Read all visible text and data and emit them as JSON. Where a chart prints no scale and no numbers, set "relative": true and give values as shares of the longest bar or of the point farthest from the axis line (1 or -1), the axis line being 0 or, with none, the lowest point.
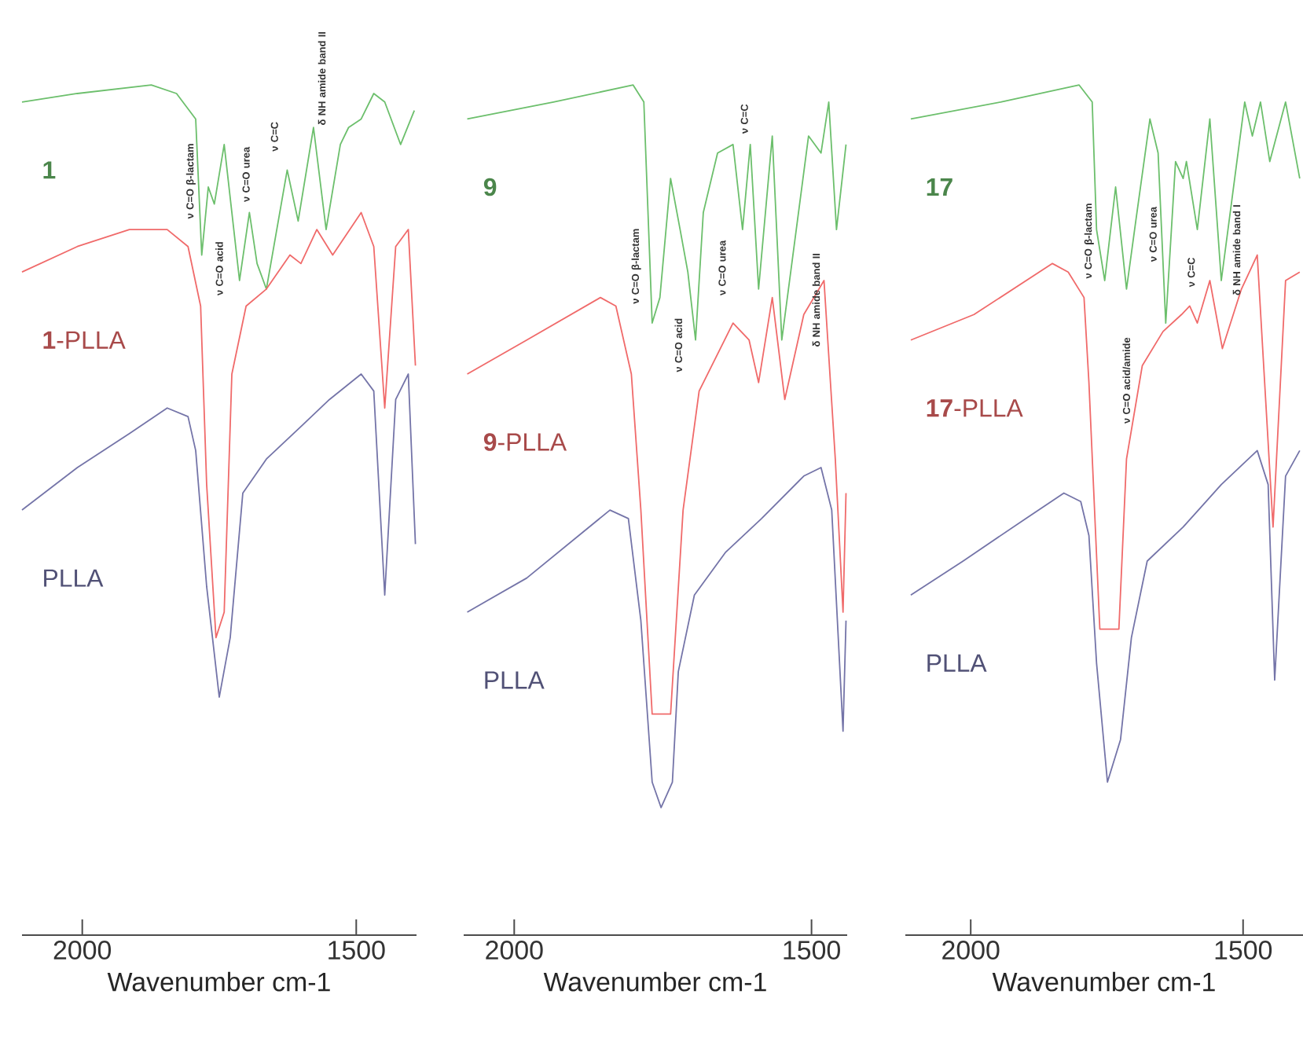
{
  "chart_data": [
    {
      "type": "line",
      "relative": true,
      "xlim": [
        2110,
        1390
      ],
      "xticks": [
        2000,
        1500
      ],
      "xlabel": "Wavenumber cm-1",
      "tick_labels": "x",
      "grid": false,
      "marker": "none",
      "series": [
        {
          "name": "1",
          "color": "#6cbf6c",
          "x": [
            2110,
            2009,
            1874,
            1828,
            1793,
            1782,
            1770,
            1759,
            1741,
            1727,
            1713,
            1695,
            1681,
            1664,
            1626,
            1606,
            1578,
            1555,
            1529,
            1514,
            1491,
            1468,
            1448,
            1419,
            1394
          ],
          "values": [
            0.98,
            0.99,
            1.0,
            0.99,
            0.96,
            0.8,
            0.88,
            0.86,
            0.93,
            0.85,
            0.77,
            0.85,
            0.79,
            0.76,
            0.9,
            0.84,
            0.95,
            0.83,
            0.93,
            0.95,
            0.96,
            0.99,
            0.98,
            0.93,
            0.97
          ]
        },
        {
          "name": "**1**-PLLA",
          "color": "#f06a6a",
          "x": [
            2110,
            2009,
            1914,
            1845,
            1807,
            1784,
            1773,
            1756,
            1741,
            1727,
            1701,
            1664,
            1621,
            1601,
            1572,
            1543,
            1491,
            1468,
            1448,
            1428,
            1405,
            1392
          ],
          "values": [
            0.78,
            0.81,
            0.83,
            0.83,
            0.81,
            0.74,
            0.53,
            0.35,
            0.38,
            0.66,
            0.74,
            0.76,
            0.8,
            0.79,
            0.83,
            0.8,
            0.85,
            0.81,
            0.62,
            0.81,
            0.83,
            0.67
          ]
        },
        {
          "name": "PLLA",
          "color": "#7474a8",
          "x": [
            2110,
            2009,
            1914,
            1845,
            1807,
            1793,
            1773,
            1750,
            1730,
            1707,
            1664,
            1598,
            1549,
            1491,
            1468,
            1448,
            1428,
            1405,
            1392
          ],
          "values": [
            0.5,
            0.55,
            0.59,
            0.62,
            0.61,
            0.57,
            0.41,
            0.28,
            0.35,
            0.52,
            0.56,
            0.6,
            0.63,
            0.66,
            0.64,
            0.4,
            0.63,
            0.66,
            0.46
          ]
        }
      ],
      "annotations": [
        "ν C=O β-lactam",
        "ν C=O acid",
        "ν C=O urea",
        "ν C=C",
        "δ NH amide band II"
      ]
    },
    {
      "type": "line",
      "relative": true,
      "xlim": [
        2085,
        1440
      ],
      "xticks": [
        2000,
        1500
      ],
      "xlabel": "Wavenumber cm-1",
      "tick_labels": "x",
      "grid": false,
      "marker": "none",
      "series": [
        {
          "name": "9",
          "color": "#6cbf6c",
          "x": [
            2079,
            1934,
            1800,
            1782,
            1768,
            1755,
            1737,
            1721,
            1708,
            1695,
            1682,
            1658,
            1632,
            1616,
            1603,
            1589,
            1566,
            1550,
            1505,
            1484,
            1471,
            1458,
            1442
          ],
          "values": [
            0.96,
            0.98,
            1.0,
            0.98,
            0.72,
            0.75,
            0.89,
            0.83,
            0.78,
            0.7,
            0.85,
            0.92,
            0.93,
            0.83,
            0.93,
            0.76,
            0.94,
            0.7,
            0.94,
            0.92,
            0.98,
            0.83,
            0.93
          ]
        },
        {
          "name": "**9**-PLLA",
          "color": "#f06a6a",
          "x": [
            2079,
            1979,
            1855,
            1829,
            1803,
            1787,
            1768,
            1737,
            1716,
            1689,
            1632,
            1605,
            1589,
            1566,
            1545,
            1513,
            1479,
            1460,
            1447,
            1442
          ],
          "values": [
            0.66,
            0.7,
            0.75,
            0.74,
            0.66,
            0.5,
            0.26,
            0.26,
            0.5,
            0.64,
            0.72,
            0.7,
            0.65,
            0.75,
            0.63,
            0.73,
            0.77,
            0.56,
            0.38,
            0.52
          ]
        },
        {
          "name": "PLLA",
          "color": "#7474a8",
          "x": [
            2079,
            1979,
            1839,
            1808,
            1787,
            1768,
            1753,
            1734,
            1724,
            1697,
            1645,
            1584,
            1513,
            1484,
            1466,
            1447,
            1442
          ],
          "values": [
            0.38,
            0.42,
            0.5,
            0.49,
            0.37,
            0.18,
            0.15,
            0.18,
            0.31,
            0.4,
            0.45,
            0.49,
            0.54,
            0.55,
            0.5,
            0.24,
            0.37
          ]
        }
      ],
      "annotations": [
        "ν C=O β-lactam",
        "ν C=O acid",
        "ν C=O urea",
        "ν C=C",
        "δ NH amide band II"
      ]
    },
    {
      "type": "line",
      "relative": true,
      "xlim": [
        2120,
        1390
      ],
      "xticks": [
        2000,
        1500
      ],
      "xlabel": "Wavenumber cm-1",
      "tick_labels": "x",
      "grid": false,
      "marker": "none",
      "series": [
        {
          "name": "17",
          "color": "#6cbf6c",
          "x": [
            2110,
            1945,
            1801,
            1777,
            1769,
            1754,
            1734,
            1714,
            1697,
            1671,
            1656,
            1642,
            1624,
            1610,
            1604,
            1584,
            1561,
            1540,
            1497,
            1483,
            1468,
            1451,
            1422,
            1396
          ],
          "values": [
            0.96,
            0.98,
            1.0,
            0.98,
            0.83,
            0.77,
            0.88,
            0.76,
            0.84,
            0.96,
            0.92,
            0.72,
            0.91,
            0.89,
            0.91,
            0.83,
            0.96,
            0.77,
            0.98,
            0.94,
            0.98,
            0.91,
            0.98,
            0.89
          ]
        },
        {
          "name": "**17**-PLLA",
          "color": "#f06a6a",
          "x": [
            2110,
            1994,
            1850,
            1821,
            1792,
            1783,
            1763,
            1728,
            1714,
            1685,
            1647,
            1613,
            1598,
            1584,
            1561,
            1538,
            1503,
            1474,
            1445,
            1422,
            1396
          ],
          "values": [
            0.7,
            0.73,
            0.79,
            0.78,
            0.75,
            0.65,
            0.36,
            0.36,
            0.56,
            0.67,
            0.71,
            0.73,
            0.74,
            0.72,
            0.77,
            0.69,
            0.76,
            0.8,
            0.48,
            0.77,
            0.78
          ]
        },
        {
          "name": "PLLA",
          "color": "#7474a8",
          "x": [
            2110,
            2014,
            1899,
            1829,
            1798,
            1783,
            1769,
            1749,
            1725,
            1705,
            1676,
            1610,
            1540,
            1474,
            1454,
            1442,
            1422,
            1396
          ],
          "values": [
            0.4,
            0.44,
            0.49,
            0.52,
            0.51,
            0.47,
            0.32,
            0.18,
            0.23,
            0.35,
            0.44,
            0.48,
            0.53,
            0.57,
            0.53,
            0.3,
            0.54,
            0.57
          ]
        }
      ],
      "annotations": [
        "ν C=O β-lactam",
        "ν C=O acid/amide",
        "ν C=O urea",
        "ν C=C",
        "δ NH amide band I"
      ]
    }
  ]
}
